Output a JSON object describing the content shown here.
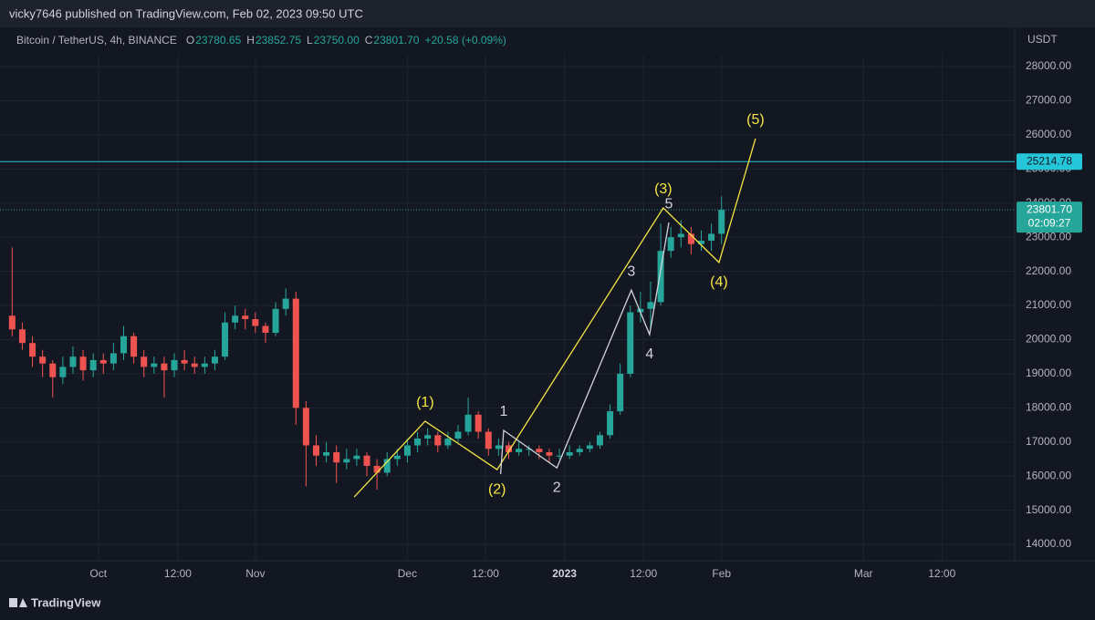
{
  "header": {
    "publisher": "vicky7646 published on TradingView.com, Feb 02, 2023 09:50 UTC",
    "symbol": "Bitcoin / TetherUS, 4h, BINANCE",
    "ohlc": [
      {
        "label": "O",
        "value": "23780.65"
      },
      {
        "label": "H",
        "value": "23852.75"
      },
      {
        "label": "L",
        "value": "23750.00"
      },
      {
        "label": "C",
        "value": "23801.70"
      }
    ],
    "change": "+20.58 (+0.09%)"
  },
  "footer": {
    "brand": "TradingView"
  },
  "chart_data": {
    "type": "candlestick",
    "y_unit": "USDT",
    "up_color": "#26a69a",
    "down_color": "#ef5350",
    "x": [
      -17,
      -15,
      -13,
      -11,
      -9,
      -7,
      -5,
      -3,
      -1,
      1,
      3,
      5,
      7,
      9,
      11,
      13,
      15,
      17,
      19,
      21,
      23,
      25,
      27,
      29,
      31,
      33,
      35,
      37,
      39,
      41,
      43,
      45,
      47,
      49,
      51,
      53,
      55,
      57,
      59,
      61,
      63,
      65,
      67,
      69,
      71,
      73,
      75,
      77,
      79,
      81,
      83,
      85,
      87,
      89,
      91,
      93,
      95,
      97,
      99,
      101,
      103,
      105,
      107,
      109,
      111,
      113,
      115,
      117,
      119,
      121,
      123
    ],
    "open": [
      20700,
      20300,
      19900,
      19500,
      19300,
      18900,
      19200,
      19500,
      19100,
      19400,
      19300,
      19600,
      20100,
      19500,
      19200,
      19300,
      19100,
      19400,
      19300,
      19200,
      19300,
      19500,
      20500,
      20700,
      20600,
      20400,
      20200,
      20900,
      21200,
      18000,
      16900,
      16600,
      16700,
      16400,
      16500,
      16600,
      16300,
      16100,
      16500,
      16600,
      16900,
      17100,
      17200,
      16900,
      17100,
      17300,
      17800,
      17300,
      16800,
      16900,
      16700,
      16800,
      16800,
      16700,
      16600,
      16600,
      16700,
      16800,
      16900,
      17200,
      17900,
      19000,
      20800,
      20900,
      21100,
      22600,
      23000,
      23100,
      22800,
      22900,
      23100
    ],
    "high": [
      22700,
      20500,
      20100,
      19700,
      19400,
      19500,
      19800,
      19700,
      19600,
      19600,
      19900,
      20400,
      20200,
      19700,
      19500,
      19500,
      19600,
      19700,
      19500,
      19500,
      19700,
      20800,
      21000,
      20900,
      20800,
      20500,
      21100,
      21500,
      21400,
      18200,
      17200,
      17000,
      16900,
      16800,
      16800,
      16700,
      16500,
      16700,
      16800,
      17100,
      17300,
      17400,
      17300,
      17300,
      17500,
      18300,
      17900,
      17400,
      17100,
      17000,
      17000,
      16900,
      16900,
      16800,
      16800,
      16900,
      16900,
      17000,
      17300,
      18100,
      19300,
      21000,
      21400,
      21700,
      23400,
      23300,
      23500,
      23300,
      23200,
      23400,
      24200
    ],
    "low": [
      20100,
      19700,
      19200,
      18900,
      18300,
      18700,
      19000,
      18800,
      18900,
      19000,
      19100,
      19400,
      19300,
      18900,
      19000,
      18300,
      18900,
      19100,
      19000,
      19000,
      19100,
      19400,
      20300,
      20300,
      20200,
      19900,
      20100,
      20700,
      17500,
      15700,
      16300,
      16400,
      15800,
      16200,
      16300,
      16000,
      15600,
      16000,
      16300,
      16400,
      16700,
      16900,
      16700,
      16800,
      17000,
      17200,
      17100,
      16600,
      16600,
      16500,
      16600,
      16600,
      16500,
      16400,
      16500,
      16500,
      16600,
      16700,
      16800,
      17100,
      17800,
      18900,
      20500,
      20300,
      21000,
      22400,
      22700,
      22500,
      22600,
      22600,
      22800
    ],
    "close": [
      20300,
      19900,
      19500,
      19300,
      18900,
      19200,
      19500,
      19100,
      19400,
      19300,
      19600,
      20100,
      19500,
      19200,
      19300,
      19100,
      19400,
      19300,
      19200,
      19300,
      19500,
      20500,
      20700,
      20600,
      20400,
      20200,
      20900,
      21200,
      18000,
      16900,
      16600,
      16700,
      16400,
      16500,
      16600,
      16300,
      16100,
      16500,
      16600,
      16900,
      17100,
      17200,
      16900,
      17100,
      17300,
      17800,
      17300,
      16800,
      16900,
      16700,
      16800,
      16800,
      16700,
      16600,
      16600,
      16700,
      16800,
      16900,
      17200,
      17900,
      19000,
      20800,
      20900,
      21100,
      22600,
      23000,
      23100,
      22800,
      22900,
      23100,
      23800
    ],
    "xlim": [
      -17.6,
      180.5
    ],
    "xticks": [
      {
        "value": 0,
        "label": "Oct"
      },
      {
        "value": 15.7,
        "label": "12:00"
      },
      {
        "value": 31,
        "label": "Nov"
      },
      {
        "value": 61,
        "label": "Dec"
      },
      {
        "value": 76.4,
        "label": "12:00"
      },
      {
        "value": 92,
        "label": "2023"
      },
      {
        "value": 107.6,
        "label": "12:00"
      },
      {
        "value": 123,
        "label": "Feb"
      },
      {
        "value": 151,
        "label": "Mar"
      },
      {
        "value": 166.5,
        "label": "12:00"
      }
    ],
    "ylim": [
      13520,
      29150
    ],
    "yticks": [
      {
        "value": 14000,
        "label": "14000.00"
      },
      {
        "value": 15000,
        "label": "15000.00"
      },
      {
        "value": 16000,
        "label": "16000.00"
      },
      {
        "value": 17000,
        "label": "17000.00"
      },
      {
        "value": 18000,
        "label": "18000.00"
      },
      {
        "value": 19000,
        "label": "19000.00"
      },
      {
        "value": 20000,
        "label": "20000.00"
      },
      {
        "value": 21000,
        "label": "21000.00"
      },
      {
        "value": 22000,
        "label": "22000.00"
      },
      {
        "value": 23000,
        "label": "23000.00"
      },
      {
        "value": 24000,
        "label": "24000.00"
      },
      {
        "value": 25000,
        "label": "25000.00"
      },
      {
        "value": 26000,
        "label": "26000.00"
      },
      {
        "value": 27000,
        "label": "27000.00"
      },
      {
        "value": 28000,
        "label": "28000.00"
      }
    ],
    "grid": true,
    "hline": {
      "value": 25214.78,
      "label": "25214.78",
      "color": "#26c6da"
    },
    "last_price": {
      "value": 23801.7,
      "label": "23801.70",
      "countdown": "02:09:27",
      "color": "#26a69a"
    },
    "waves": [
      {
        "color": "#f5e642",
        "x": [
          50.5,
          64.5,
          78.7,
          111.5,
          122.5,
          129.7
        ],
        "values": [
          15390,
          17610,
          16190,
          23860,
          22260,
          25890
        ],
        "labels": [
          null,
          "(1)",
          "(2)",
          "(3)",
          "(4)",
          "(5)"
        ]
      },
      {
        "color": "#d1d4dc",
        "x": [
          79.4,
          80,
          90.5,
          105.2,
          108.8,
          112.6
        ],
        "values": [
          16060,
          17340,
          16240,
          21450,
          20150,
          23430
        ],
        "labels": [
          null,
          "1",
          "2",
          "3",
          "4",
          "5"
        ]
      }
    ]
  }
}
